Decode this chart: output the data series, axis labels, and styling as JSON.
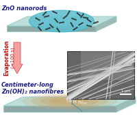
{
  "bg_color": "#ffffff",
  "top_label": "ZnO nanorods",
  "top_label_color": "#1a1a8c",
  "arrow_label_line1": "Evaporation",
  "arrow_label_line2": "(~100 s)",
  "arrow_label_color": "#cc0000",
  "bottom_label_line1": "Centimeter-long",
  "bottom_label_line2": "Zn(OH)₂ nanofibres",
  "bottom_label_color": "#1a1a8c",
  "scale_bar_text": "1 μm",
  "top_slab_color_edge": "#88c8c0",
  "top_slab_face": "#b8ddd8",
  "bottom_slab_face": "#b8ddd8",
  "droplet_color": "#60c0d0",
  "nanorod_color": "#2a2a2a",
  "thin_film_color_center": "#c8a870",
  "sem_bg": "#707070",
  "arrow_face": "#f09090",
  "arrow_edge": "#cc2020",
  "connector_color": "#4488bb",
  "thin_film_text": "Thin film",
  "thin_film_text_color": "#e8e0d0"
}
